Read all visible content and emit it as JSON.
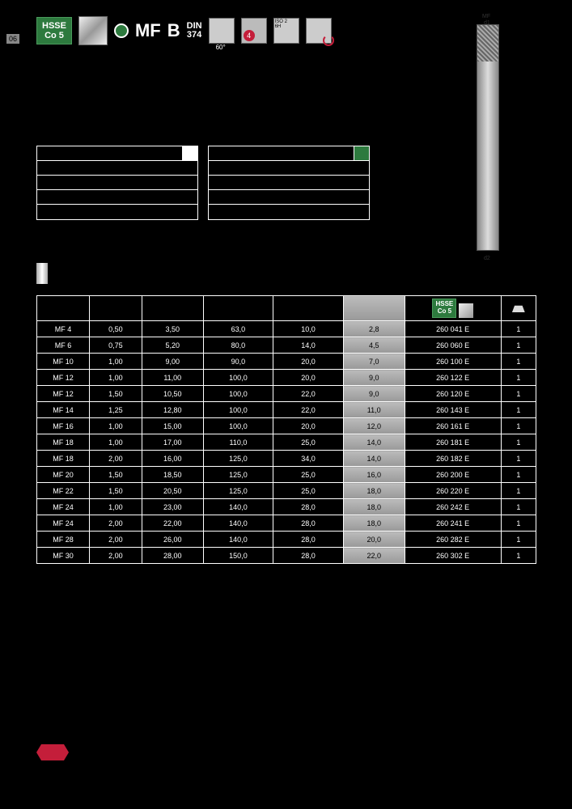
{
  "page_number": "06",
  "header": {
    "material": "HSSE\nCo 5",
    "thread_type": "MF",
    "form": "B",
    "din_label": "DIN",
    "din_number": "374",
    "angle": "60°",
    "tolerance_badge": "4",
    "iso": "ISO 2\n6H"
  },
  "drawing": {
    "top_label": "MF",
    "dim1": "d1",
    "dim2": "d2"
  },
  "table": {
    "columns": [
      "",
      "",
      "",
      "",
      "",
      "",
      "",
      ""
    ],
    "rows": [
      [
        "MF   4",
        "0,50",
        "3,50",
        "63,0",
        "10,0",
        "2,8",
        "260 041 E",
        "1"
      ],
      [
        "MF   6",
        "0,75",
        "5,20",
        "80,0",
        "14,0",
        "4,5",
        "260 060 E",
        "1"
      ],
      [
        "MF 10",
        "1,00",
        "9,00",
        "90,0",
        "20,0",
        "7,0",
        "260 100 E",
        "1"
      ],
      [
        "MF 12",
        "1,00",
        "11,00",
        "100,0",
        "20,0",
        "9,0",
        "260 122 E",
        "1"
      ],
      [
        "MF 12",
        "1,50",
        "10,50",
        "100,0",
        "22,0",
        "9,0",
        "260 120 E",
        "1"
      ],
      [
        "MF 14",
        "1,25",
        "12,80",
        "100,0",
        "22,0",
        "11,0",
        "260 143 E",
        "1"
      ],
      [
        "MF 16",
        "1,00",
        "15,00",
        "100,0",
        "20,0",
        "12,0",
        "260 161 E",
        "1"
      ],
      [
        "MF 18",
        "1,00",
        "17,00",
        "110,0",
        "25,0",
        "14,0",
        "260 181 E",
        "1"
      ],
      [
        "MF 18",
        "2,00",
        "16,00",
        "125,0",
        "34,0",
        "14,0",
        "260 182 E",
        "1"
      ],
      [
        "MF 20",
        "1,50",
        "18,50",
        "125,0",
        "25,0",
        "16,0",
        "260 200 E",
        "1"
      ],
      [
        "MF 22",
        "1,50",
        "20,50",
        "125,0",
        "25,0",
        "18,0",
        "260 220 E",
        "1"
      ],
      [
        "MF 24",
        "1,00",
        "23,00",
        "140,0",
        "28,0",
        "18,0",
        "260 242 E",
        "1"
      ],
      [
        "MF 24",
        "2,00",
        "22,00",
        "140,0",
        "28,0",
        "18,0",
        "260 241 E",
        "1"
      ],
      [
        "MF 28",
        "2,00",
        "26,00",
        "140,0",
        "28,0",
        "20,0",
        "260 282 E",
        "1"
      ],
      [
        "MF 30",
        "2,00",
        "28,00",
        "150,0",
        "28,0",
        "22,0",
        "260 302 E",
        "1"
      ]
    ],
    "header_badge": "HSSE\nCo 5"
  },
  "colors": {
    "green": "#2d7a3e",
    "red": "#c41e3a",
    "bg": "#000000"
  }
}
